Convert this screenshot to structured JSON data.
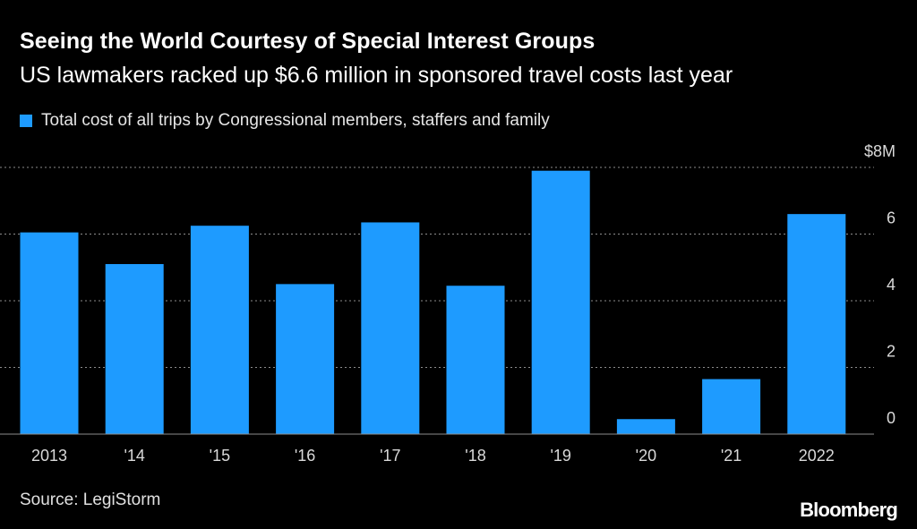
{
  "colors": {
    "background": "#000000",
    "bar": "#1e9bff",
    "grid": "#8c8c8c",
    "text": "#ffffff",
    "muted": "#d9d9d9"
  },
  "chart_data": {
    "type": "bar",
    "title": "Seeing the World Courtesy of Special Interest Groups",
    "subtitle": "US lawmakers racked up $6.6 million in sponsored travel costs last year",
    "legend": [
      "Total cost of all trips by Congressional members, staffers and family"
    ],
    "legend_placement": "top-left",
    "categories": [
      "2013",
      "'14",
      "'15",
      "'16",
      "'17",
      "'18",
      "'19",
      "'20",
      "'21",
      "2022"
    ],
    "series": [
      {
        "name": "Total cost of all trips by Congressional members, staffers and family",
        "values": [
          6.05,
          5.1,
          6.25,
          4.5,
          6.35,
          4.45,
          7.9,
          0.45,
          1.65,
          6.6
        ]
      }
    ],
    "ylim": [
      0,
      8
    ],
    "yticks": [
      0,
      2,
      4,
      6,
      8
    ],
    "ytick_labels": [
      "0",
      "2",
      "4",
      "6",
      "$8M"
    ],
    "xlabel": "",
    "ylabel": "",
    "grid": true
  },
  "footer": {
    "source": "Source: LegiStorm",
    "brand": "Bloomberg"
  }
}
